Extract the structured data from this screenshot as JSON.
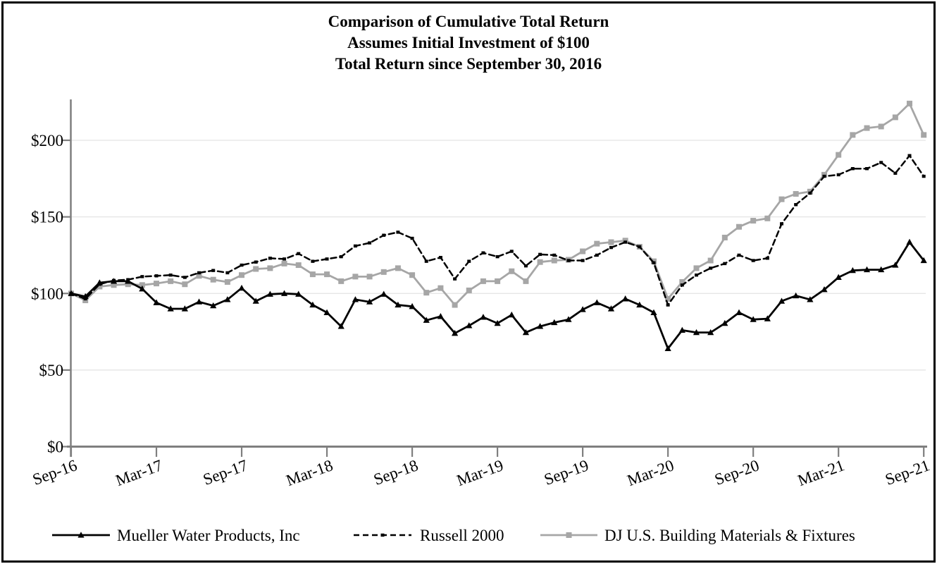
{
  "title": {
    "line1": "Comparison of Cumulative Total Return",
    "line2": "Assumes Initial Investment of $100",
    "line3": "Total Return since September 30, 2016"
  },
  "chart_data": {
    "type": "line",
    "x_unit": "month",
    "x_start_label": "Sep-16",
    "x_end_label": "Sep-21",
    "x_tick_labels": [
      "Sep-16",
      "Mar-17",
      "Sep-17",
      "Mar-18",
      "Sep-18",
      "Mar-19",
      "Sep-19",
      "Mar-20",
      "Sep-20",
      "Mar-21",
      "Sep-21"
    ],
    "y_ticks": [
      0,
      50,
      100,
      150,
      200
    ],
    "y_tick_labels": [
      "$0",
      "$50",
      "$100",
      "$150",
      "$200"
    ],
    "ylim": [
      0,
      227
    ],
    "grid": true,
    "legend_position": "bottom",
    "axis_color": "#7f7f7f",
    "gridline_color": "#e3e3e3",
    "series": [
      {
        "name": "DJ U.S. Building Materials & Fixtures",
        "color": "#a6a6a6",
        "style": "solid",
        "marker": "square",
        "values": [
          100,
          95.5,
          104.5,
          105.5,
          106,
          105.5,
          106.5,
          108,
          106,
          111.5,
          109,
          107.5,
          112,
          116,
          116.5,
          119.5,
          118.5,
          112.5,
          112.5,
          108,
          111,
          111,
          114,
          116.5,
          112,
          100.5,
          103.5,
          92.5,
          102,
          108,
          108,
          114.5,
          108,
          120.5,
          121.5,
          122,
          127.5,
          132.5,
          133.5,
          134.5,
          130.5,
          121,
          96.5,
          107.5,
          116.5,
          121.5,
          136.5,
          143.5,
          147.5,
          149,
          161.5,
          165,
          166.5,
          177.5,
          190.5,
          203.5,
          208,
          209,
          215,
          224,
          203.5
        ]
      },
      {
        "name": "Russell 2000",
        "color": "#000000",
        "style": "dashed",
        "marker": "dash",
        "values": [
          100,
          96.5,
          106,
          108.5,
          109,
          111,
          111.5,
          112,
          110.5,
          113.5,
          115,
          113.5,
          118.5,
          120.5,
          123,
          122.5,
          126,
          121,
          122.5,
          124,
          131,
          133,
          138,
          140,
          136,
          121,
          123.5,
          109.5,
          121,
          126.5,
          124,
          127.5,
          118,
          125.5,
          125,
          121.5,
          121.5,
          125,
          130,
          133.5,
          130.5,
          120,
          92.5,
          105.5,
          112,
          116.5,
          119.5,
          125,
          121.5,
          123,
          145.5,
          158,
          165.5,
          176.5,
          177.5,
          181.5,
          181.5,
          185.5,
          178.5,
          190,
          176.5
        ]
      },
      {
        "name": "Mueller Water Products, Inc",
        "color": "#000000",
        "style": "solid",
        "marker": "triangle",
        "values": [
          100,
          98,
          107,
          108,
          108,
          103,
          94,
          90,
          90,
          94.5,
          92,
          96,
          103.5,
          95,
          99.5,
          100,
          99.5,
          92.5,
          87.5,
          78.5,
          96,
          94.5,
          99.5,
          92.5,
          91.5,
          82.5,
          85,
          74,
          79,
          84.5,
          80.5,
          86,
          74.5,
          78.5,
          81,
          83,
          89.5,
          94,
          90,
          96.5,
          92.5,
          87.5,
          64,
          76,
          74.5,
          74.5,
          80.5,
          87.5,
          83,
          83.5,
          95,
          98.5,
          96,
          102.5,
          110.5,
          115,
          115.5,
          115.5,
          118.5,
          133.5,
          121.5
        ]
      }
    ],
    "legend_order": [
      "Mueller Water Products, Inc",
      "Russell 2000",
      "DJ U.S. Building Materials & Fixtures"
    ]
  }
}
